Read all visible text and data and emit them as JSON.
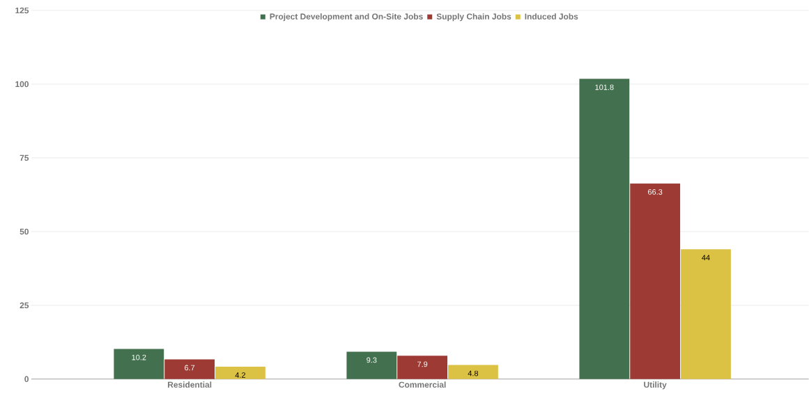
{
  "chart_data": {
    "type": "bar",
    "categories": [
      "Residential",
      "Commercial",
      "Utility"
    ],
    "series": [
      {
        "name": "Project Development and On-Site Jobs",
        "color": "#43714f",
        "values": [
          10.2,
          9.3,
          101.8
        ]
      },
      {
        "name": "Supply Chain Jobs",
        "color": "#9c3a33",
        "values": [
          6.7,
          7.9,
          66.3
        ]
      },
      {
        "name": "Induced Jobs",
        "color": "#dcc244",
        "values": [
          4.2,
          4.8,
          44
        ]
      }
    ],
    "ylim": [
      0,
      125
    ],
    "yticks": [
      0,
      25,
      50,
      75,
      100,
      125
    ],
    "grid": "y",
    "legend": "top",
    "data_labels": true
  }
}
